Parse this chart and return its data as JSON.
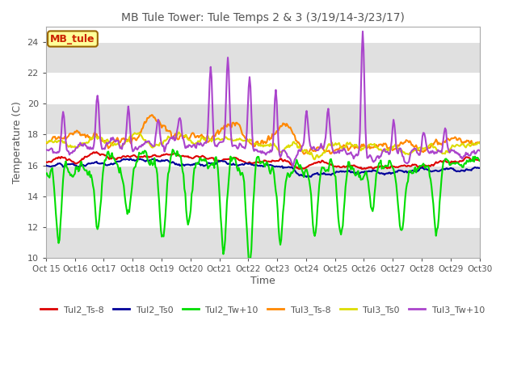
{
  "title": "MB Tule Tower: Tule Temps 2 & 3 (3/19/14-3/23/17)",
  "ylabel": "Temperature (C)",
  "xlabel": "Time",
  "ylim": [
    10,
    25
  ],
  "yticks": [
    10,
    12,
    14,
    16,
    18,
    20,
    22,
    24
  ],
  "xtick_labels": [
    "Oct 15",
    "Oct 16",
    "Oct 17",
    "Oct 18",
    "Oct 19",
    "Oct 20",
    "Oct 21",
    "Oct 22",
    "Oct 23",
    "Oct 24",
    "Oct 25",
    "Oct 26",
    "Oct 27",
    "Oct 28",
    "Oct 29",
    "Oct 30"
  ],
  "n_points": 480,
  "background_color": "#ffffff",
  "plot_bg": "#ffffff",
  "stripe_color": "#e8e8e8",
  "line_colors": {
    "Tul2_Ts-8": "#dd0000",
    "Tul2_Ts0": "#000099",
    "Tul2_Tw+10": "#00dd00",
    "Tul3_Ts-8": "#ff8800",
    "Tul3_Ts0": "#dddd00",
    "Tul3_Tw+10": "#aa44cc"
  },
  "legend_label": "MB_tule",
  "legend_bg": "#ffff99",
  "legend_border": "#996600",
  "legend_text": "#cc2200"
}
